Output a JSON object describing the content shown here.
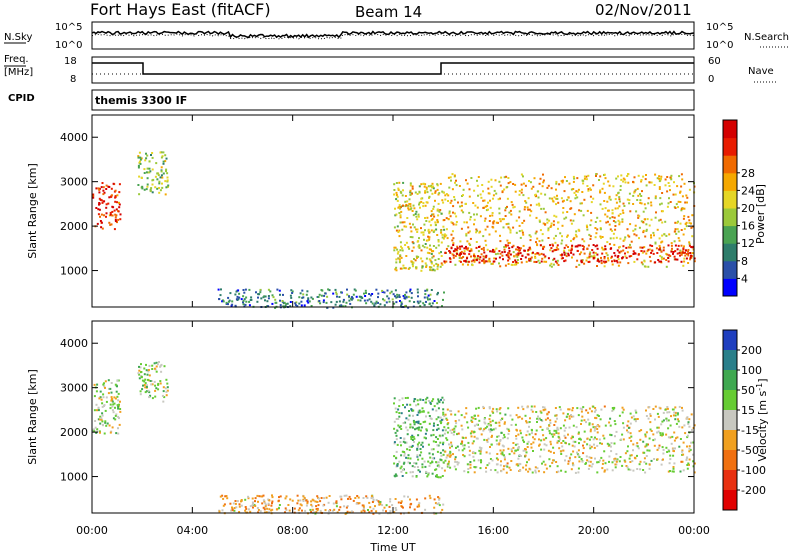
{
  "header": {
    "station": "Fort Hays East (fitACF)",
    "beam": "Beam 14",
    "date": "02/Nov/2011"
  },
  "top_panels": {
    "noise": {
      "left_label": "N.Sky",
      "right_label": "N.Search",
      "left_ticks": [
        "10^5",
        "10^0"
      ],
      "right_ticks": [
        "10^5",
        "10^0"
      ]
    },
    "freq": {
      "left_label_1": "Freq.",
      "left_label_2": "[MHz]",
      "right_label": "Nave",
      "left_ticks": [
        "18",
        "8"
      ],
      "right_ticks": [
        "60",
        "0"
      ]
    },
    "cpid": {
      "label": "CPID",
      "text": "themis 3300 IF"
    }
  },
  "chart_data": [
    {
      "type": "heatmap",
      "name": "power",
      "ylabel": "Slant Range [km]",
      "xlabel": "Time UT",
      "x_ticks": [
        "00:00",
        "04:00",
        "08:00",
        "12:00",
        "16:00",
        "20:00",
        "00:00"
      ],
      "y_ticks": [
        1000,
        2000,
        3000,
        4000
      ],
      "xlim_hours": [
        0,
        24
      ],
      "ylim_km": [
        180,
        4500
      ],
      "colorbar": {
        "label": "Power [dB]",
        "ticks": [
          "4",
          "8",
          "12",
          "16",
          "20",
          "24",
          "28"
        ],
        "colors": [
          "#0000ff",
          "#2a4fa8",
          "#2e7d6b",
          "#4aa352",
          "#9bc93a",
          "#e5d626",
          "#f5a800",
          "#f06a00",
          "#e81c00",
          "#d40000"
        ]
      },
      "regions": [
        {
          "t0": 0.0,
          "t1": 1.1,
          "r0": 1950,
          "r1": 3000,
          "level": 0.85
        },
        {
          "t0": 1.8,
          "t1": 3.0,
          "r0": 2700,
          "r1": 3700,
          "level": 0.45
        },
        {
          "t0": 5.0,
          "t1": 14.0,
          "r0": 180,
          "r1": 600,
          "level": 0.25
        },
        {
          "t0": 12.0,
          "t1": 14.0,
          "r0": 1000,
          "r1": 3000,
          "level": 0.55
        },
        {
          "t0": 14.0,
          "t1": 24.0,
          "r0": 1100,
          "r1": 3200,
          "level": 0.6
        },
        {
          "t0": 14.0,
          "t1": 24.0,
          "r0": 1200,
          "r1": 1600,
          "level": 0.9
        }
      ]
    },
    {
      "type": "heatmap",
      "name": "velocity",
      "ylabel": "Slant Range [km]",
      "xlabel": "Time UT",
      "x_ticks": [
        "00:00",
        "04:00",
        "08:00",
        "12:00",
        "16:00",
        "20:00",
        "00:00"
      ],
      "y_ticks": [
        1000,
        2000,
        3000,
        4000
      ],
      "xlim_hours": [
        0,
        24
      ],
      "ylim_km": [
        180,
        4500
      ],
      "colorbar": {
        "label": "Velocity [m s",
        "label_exp": "-1",
        "label_close": "]",
        "ticks": [
          "200",
          "100",
          "50",
          "15",
          "-15",
          "-50",
          "-100",
          "-200"
        ],
        "colors": [
          "#1f3fbf",
          "#2a7f8a",
          "#3fa850",
          "#66cc33",
          "#c8c8c0",
          "#f0a020",
          "#f07010",
          "#e83010",
          "#e00000"
        ]
      },
      "regions": [
        {
          "t0": 0.0,
          "t1": 1.1,
          "r0": 1950,
          "r1": 3200,
          "level": 0.45
        },
        {
          "t0": 1.8,
          "t1": 3.0,
          "r0": 2700,
          "r1": 3600,
          "level": 0.45
        },
        {
          "t0": 5.0,
          "t1": 14.0,
          "r0": 180,
          "r1": 600,
          "level": 0.6
        },
        {
          "t0": 12.0,
          "t1": 14.0,
          "r0": 1000,
          "r1": 2800,
          "level": 0.35
        },
        {
          "t0": 14.0,
          "t1": 24.0,
          "r0": 1100,
          "r1": 2600,
          "level": 0.5
        }
      ]
    }
  ]
}
